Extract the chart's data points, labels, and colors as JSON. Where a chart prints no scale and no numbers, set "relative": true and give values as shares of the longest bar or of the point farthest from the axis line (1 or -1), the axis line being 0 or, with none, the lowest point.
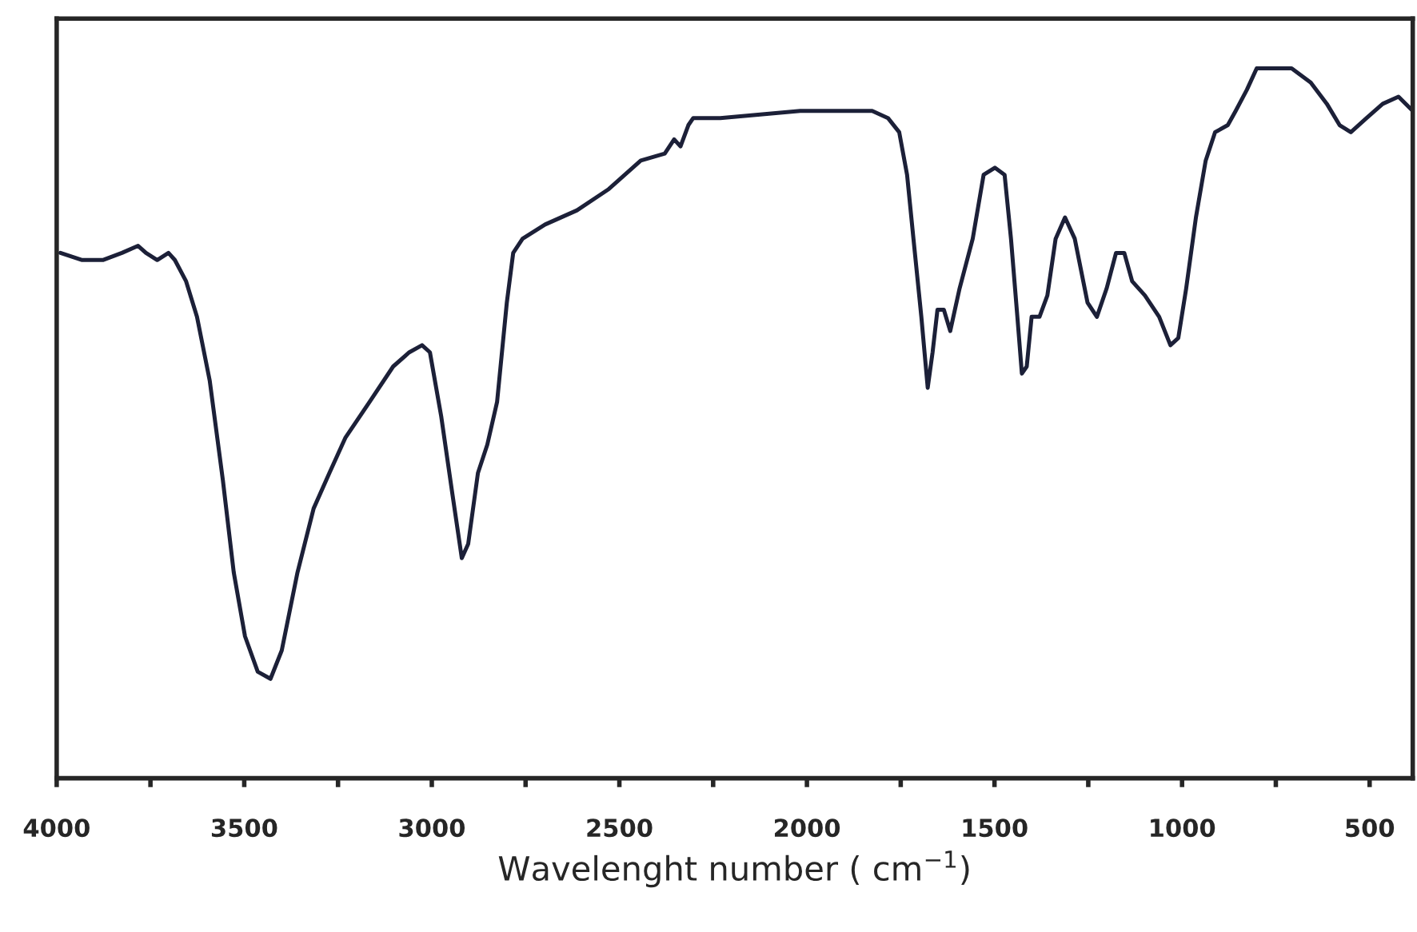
{
  "chart_data": {
    "type": "line",
    "relative": true,
    "xlabel": "Wavelenght number ( cm$^{−1}$)",
    "xlim": [
      4000,
      385
    ],
    "xticks": [
      4000,
      {
        "value": 3750,
        "label": null
      },
      3500,
      {
        "value": 3250,
        "label": null
      },
      3000,
      {
        "value": 2750,
        "label": null
      },
      2500,
      {
        "value": 2250,
        "label": null
      },
      2000,
      {
        "value": 1750,
        "label": null
      },
      1500,
      {
        "value": 1250,
        "label": null
      },
      1000,
      {
        "value": 750,
        "label": null
      },
      500
    ],
    "grid": false,
    "legend": false,
    "marker": "none",
    "line_style": "solid",
    "series": [
      {
        "color": "#1c2038",
        "x": [
          3990,
          3932,
          3877,
          3826,
          3783,
          3762,
          3732,
          3702,
          3685,
          3655,
          3626,
          3592,
          3557,
          3528,
          3498,
          3464,
          3430,
          3400,
          3358,
          3315,
          3273,
          3230,
          3166,
          3103,
          3060,
          3026,
          3005,
          2975,
          2945,
          2920,
          2903,
          2877,
          2852,
          2826,
          2800,
          2783,
          2758,
          2698,
          2613,
          2528,
          2443,
          2379,
          2354,
          2337,
          2316,
          2303,
          2231,
          2018,
          1890,
          1826,
          1784,
          1754,
          1733,
          1716,
          1695,
          1678,
          1665,
          1652,
          1635,
          1618,
          1593,
          1558,
          1529,
          1499,
          1473,
          1456,
          1439,
          1427,
          1414,
          1401,
          1380,
          1359,
          1337,
          1312,
          1286,
          1252,
          1227,
          1201,
          1176,
          1154,
          1133,
          1099,
          1061,
          1031,
          1010,
          989,
          963,
          937,
          912,
          878,
          857,
          827,
          801,
          763,
          708,
          657,
          614,
          580,
          550,
          508,
          465,
          423,
          385
        ],
        "values": [
          0.74,
          0.73,
          0.73,
          0.74,
          0.75,
          0.74,
          0.73,
          0.74,
          0.73,
          0.7,
          0.65,
          0.56,
          0.42,
          0.29,
          0.2,
          0.15,
          0.14,
          0.18,
          0.29,
          0.38,
          0.43,
          0.48,
          0.53,
          0.58,
          0.6,
          0.61,
          0.6,
          0.51,
          0.4,
          0.31,
          0.33,
          0.43,
          0.47,
          0.53,
          0.67,
          0.74,
          0.76,
          0.78,
          0.8,
          0.83,
          0.87,
          0.88,
          0.9,
          0.89,
          0.92,
          0.93,
          0.93,
          0.94,
          0.94,
          0.94,
          0.93,
          0.91,
          0.85,
          0.76,
          0.65,
          0.55,
          0.6,
          0.66,
          0.66,
          0.63,
          0.69,
          0.76,
          0.85,
          0.86,
          0.85,
          0.76,
          0.65,
          0.57,
          0.58,
          0.65,
          0.65,
          0.68,
          0.76,
          0.79,
          0.76,
          0.67,
          0.65,
          0.69,
          0.74,
          0.74,
          0.7,
          0.68,
          0.65,
          0.61,
          0.62,
          0.69,
          0.79,
          0.87,
          0.91,
          0.92,
          0.94,
          0.97,
          1.0,
          1.0,
          1.0,
          0.98,
          0.95,
          0.92,
          0.91,
          0.93,
          0.95,
          0.96,
          0.94
        ]
      }
    ]
  }
}
